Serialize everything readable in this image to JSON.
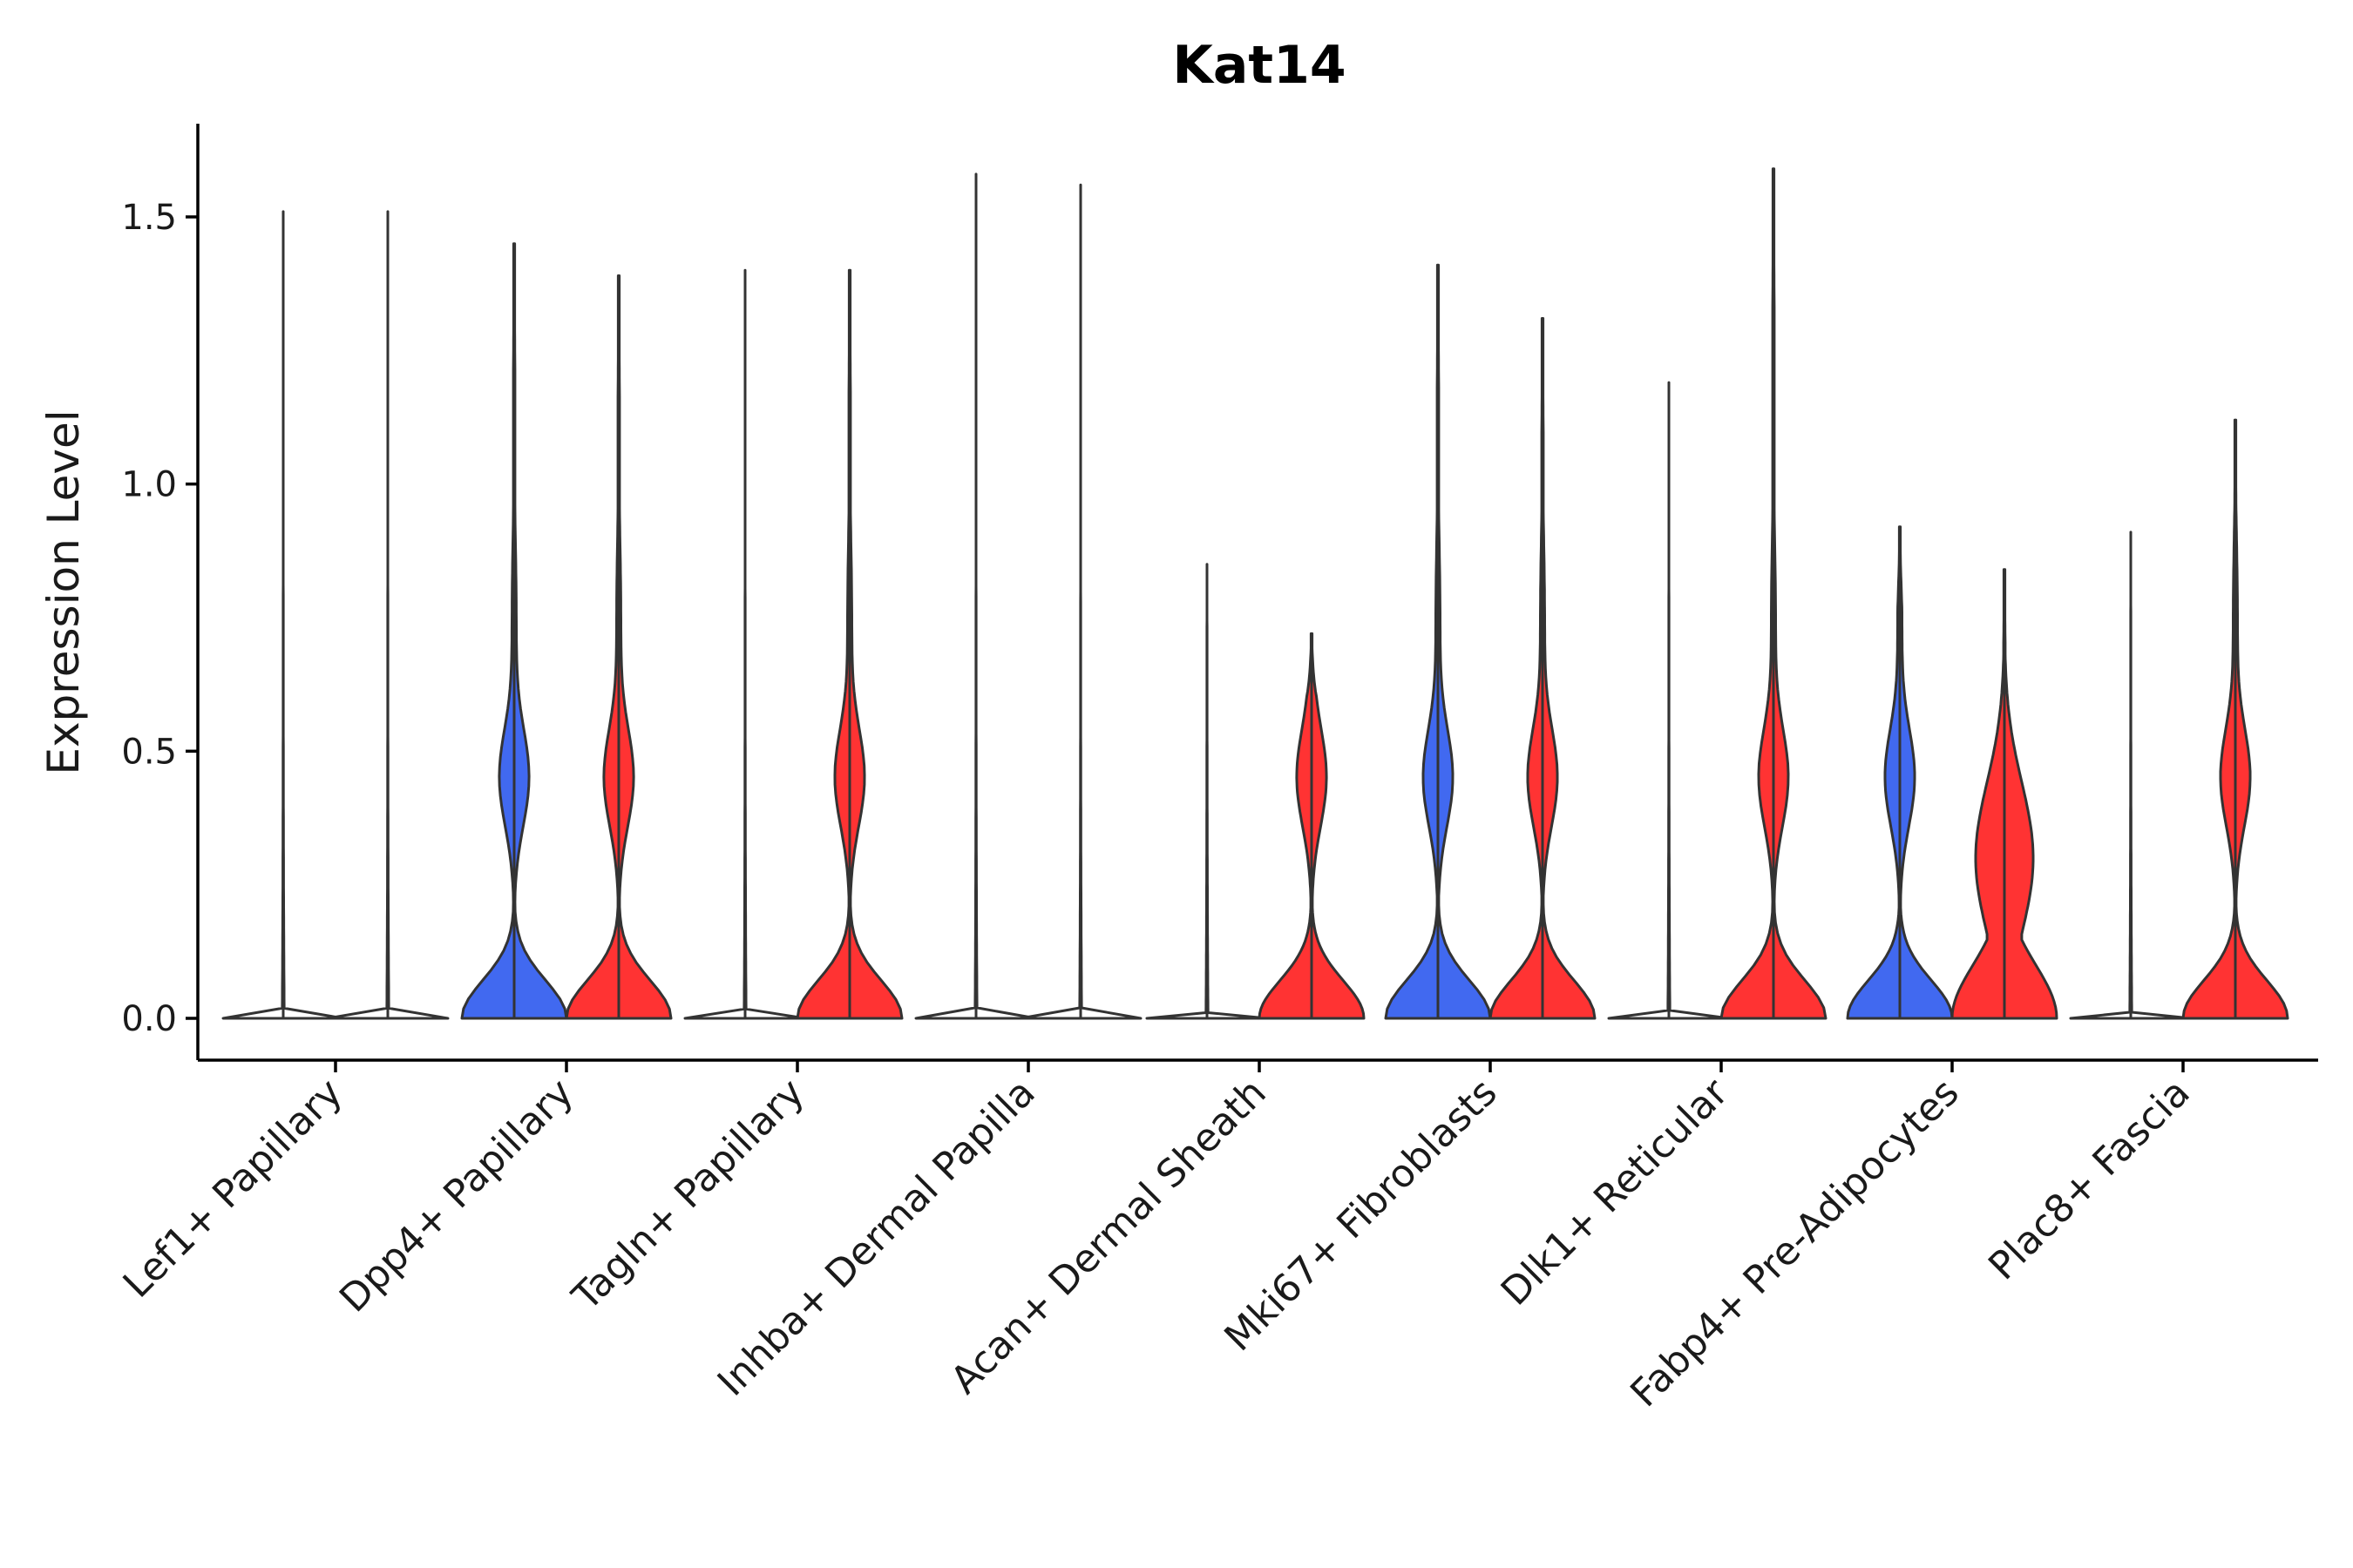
{
  "chart_data": {
    "type": "violin",
    "title": "Kat14",
    "xlabel": "",
    "ylabel": "Expression Level",
    "ylim": [
      -0.08,
      1.67
    ],
    "yticks": [
      0.0,
      0.5,
      1.0,
      1.5
    ],
    "ytick_labels": [
      "0.0",
      "0.5",
      "1.0",
      "1.5"
    ],
    "legend": "none",
    "colors": {
      "blue_group": "#4169f0",
      "red_group": "#ff3333",
      "outline": "#333333"
    },
    "categories": [
      "Lef1+ Papillary",
      "Dpp4+ Papillary",
      "Tagln+ Papillary",
      "Inhba+ Dermal Papilla",
      "Acan+ Dermal Sheath",
      "Mki67+ Fibroblasts",
      "Dlk1+ Reticular",
      "Fabp4+ Pre-Adipocytes",
      "Plac8+ Fascia"
    ],
    "series": [
      {
        "name": "blue_group",
        "color": "#4169f0",
        "max": [
          1.51,
          1.45,
          1.4,
          1.58,
          0.85,
          1.41,
          1.19,
          0.92,
          0.91
        ],
        "profile": [
          "flat",
          "bimodal",
          "flat",
          "flat",
          "flat",
          "bimodal",
          "flat",
          "bimodal",
          "flat"
        ]
      },
      {
        "name": "red_group",
        "color": "#ff3333",
        "max": [
          1.51,
          1.39,
          1.4,
          1.56,
          0.72,
          1.31,
          1.59,
          0.84,
          1.12
        ],
        "profile": [
          "flat",
          "bimodal",
          "bimodal",
          "flat",
          "bimodal",
          "bimodal",
          "bimodal",
          "broad",
          "bimodal"
        ]
      }
    ]
  }
}
